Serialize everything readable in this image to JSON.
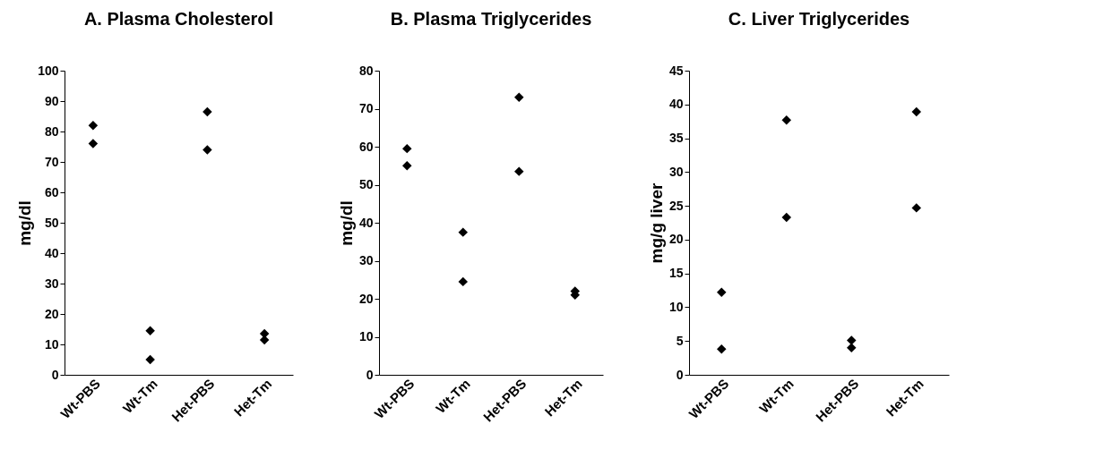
{
  "chart_data": [
    {
      "type": "scatter",
      "title": "A.  Plasma Cholesterol",
      "ylabel": "mg/dl",
      "categories": [
        "Wt-PBS",
        "Wt-Tm",
        "Het-PBS",
        "Het-Tm"
      ],
      "marker": "diamond",
      "ylim": [
        0,
        100
      ],
      "yticks": [
        0,
        10,
        20,
        30,
        40,
        50,
        60,
        70,
        80,
        90,
        100
      ],
      "series": [
        {
          "color": "#000000",
          "values": [
            82,
            14.5,
            86.5,
            13.5
          ]
        },
        {
          "color": "#000000",
          "values": [
            76,
            5,
            74,
            11.5
          ]
        }
      ]
    },
    {
      "type": "scatter",
      "title": "B.  Plasma Triglycerides",
      "ylabel": "mg/dl",
      "categories": [
        "Wt-PBS",
        "Wt-Tm",
        "Het-PBS",
        "Het-Tm"
      ],
      "marker": "diamond",
      "ylim": [
        0,
        80
      ],
      "yticks": [
        0,
        10,
        20,
        30,
        40,
        50,
        60,
        70,
        80
      ],
      "series": [
        {
          "color": "#000000",
          "values": [
            59.5,
            37.5,
            73,
            22
          ]
        },
        {
          "color": "#000000",
          "values": [
            55,
            24.5,
            53.5,
            21
          ]
        }
      ]
    },
    {
      "type": "scatter",
      "title": "C.  Liver Triglycerides",
      "ylabel": "mg/g liver",
      "categories": [
        "Wt-PBS",
        "Wt-Tm",
        "Het-PBS",
        "Het-Tm"
      ],
      "marker": "diamond",
      "ylim": [
        0,
        45
      ],
      "yticks": [
        0,
        5,
        10,
        15,
        20,
        25,
        30,
        35,
        40,
        45
      ],
      "series": [
        {
          "color": "#000000",
          "values": [
            12.2,
            37.7,
            5.1,
            38.9
          ]
        },
        {
          "color": "#000000",
          "values": [
            3.8,
            23.3,
            4,
            24.7
          ]
        }
      ]
    }
  ]
}
